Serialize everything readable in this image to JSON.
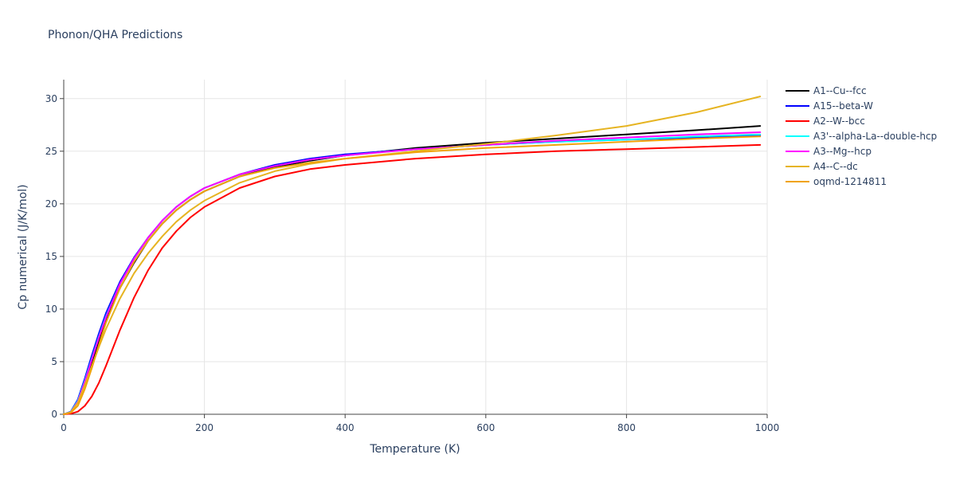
{
  "chart_data": {
    "type": "line",
    "title": "Phonon/QHA Predictions",
    "xlabel": "Temperature (K)",
    "ylabel": "Cp numerical (J/K/mol)",
    "xlim": [
      0,
      1000
    ],
    "ylim": [
      0,
      31.8
    ],
    "xticks": [
      0,
      200,
      400,
      600,
      800,
      1000
    ],
    "yticks": [
      0,
      5,
      10,
      15,
      20,
      25,
      30
    ],
    "grid": true,
    "legend_position": "right",
    "series": [
      {
        "name": "A1--Cu--fcc",
        "color": "#000000",
        "x": [
          0,
          10,
          20,
          30,
          40,
          50,
          60,
          80,
          100,
          120,
          140,
          160,
          180,
          200,
          250,
          300,
          350,
          400,
          500,
          600,
          700,
          800,
          900,
          990
        ],
        "y": [
          0,
          0.2,
          1.2,
          3.0,
          5.0,
          7.0,
          8.9,
          12.0,
          14.4,
          16.5,
          18.1,
          19.4,
          20.4,
          21.2,
          22.6,
          23.5,
          24.1,
          24.6,
          25.3,
          25.8,
          26.2,
          26.6,
          27.0,
          27.4
        ]
      },
      {
        "name": "A15--beta-W",
        "color": "#0000ff",
        "x": [
          0,
          10,
          20,
          30,
          40,
          50,
          60,
          80,
          100,
          120,
          140,
          160,
          180,
          200,
          250,
          300,
          350,
          400,
          500,
          600,
          700,
          800,
          900,
          990
        ],
        "y": [
          0,
          0.25,
          1.4,
          3.4,
          5.6,
          7.7,
          9.6,
          12.6,
          14.9,
          16.8,
          18.4,
          19.7,
          20.7,
          21.5,
          22.8,
          23.7,
          24.3,
          24.7,
          25.2,
          25.6,
          25.9,
          26.1,
          26.3,
          26.5
        ]
      },
      {
        "name": "A2--W--bcc",
        "color": "#ff0000",
        "x": [
          0,
          10,
          20,
          30,
          40,
          50,
          60,
          80,
          100,
          120,
          140,
          160,
          180,
          200,
          250,
          300,
          350,
          400,
          500,
          600,
          700,
          800,
          900,
          990
        ],
        "y": [
          0,
          0.05,
          0.25,
          0.8,
          1.7,
          3.0,
          4.6,
          8.0,
          11.1,
          13.7,
          15.8,
          17.4,
          18.7,
          19.7,
          21.5,
          22.6,
          23.3,
          23.7,
          24.3,
          24.7,
          25.0,
          25.2,
          25.4,
          25.6
        ]
      },
      {
        "name": "A3'--alpha-La--double-hcp",
        "color": "#00ffff",
        "x": [
          0,
          10,
          20,
          30,
          40,
          50,
          60,
          80,
          100,
          120,
          140,
          160,
          180,
          200,
          250,
          300,
          350,
          400,
          500,
          600,
          700,
          800,
          900,
          990
        ],
        "y": [
          0,
          0.22,
          1.3,
          3.2,
          5.3,
          7.4,
          9.3,
          12.4,
          14.8,
          16.8,
          18.4,
          19.7,
          20.7,
          21.5,
          22.8,
          23.6,
          24.2,
          24.6,
          25.2,
          25.6,
          25.9,
          26.1,
          26.4,
          26.6
        ]
      },
      {
        "name": "A3--Mg--hcp",
        "color": "#ff00ff",
        "x": [
          0,
          10,
          20,
          30,
          40,
          50,
          60,
          80,
          100,
          120,
          140,
          160,
          180,
          200,
          250,
          300,
          350,
          400,
          500,
          600,
          700,
          800,
          900,
          990
        ],
        "y": [
          0,
          0.2,
          1.2,
          3.1,
          5.2,
          7.3,
          9.2,
          12.4,
          14.8,
          16.8,
          18.4,
          19.7,
          20.7,
          21.5,
          22.8,
          23.6,
          24.2,
          24.6,
          25.2,
          25.6,
          26.0,
          26.3,
          26.6,
          26.8
        ]
      },
      {
        "name": "A4--C--dc",
        "color": "#e6b422",
        "x": [
          0,
          10,
          20,
          30,
          40,
          50,
          60,
          80,
          100,
          120,
          140,
          160,
          180,
          200,
          250,
          300,
          350,
          400,
          500,
          600,
          700,
          800,
          900,
          990
        ],
        "y": [
          0,
          0.2,
          1.1,
          2.8,
          4.6,
          6.4,
          8.1,
          11.0,
          13.4,
          15.3,
          16.9,
          18.3,
          19.4,
          20.3,
          22.0,
          23.1,
          23.8,
          24.3,
          25.0,
          25.7,
          26.5,
          27.4,
          28.7,
          30.2
        ]
      },
      {
        "name": "oqmd-1214811",
        "color": "#f0a30a",
        "x": [
          0,
          10,
          20,
          30,
          40,
          50,
          60,
          80,
          100,
          120,
          140,
          160,
          180,
          200,
          250,
          300,
          350,
          400,
          500,
          600,
          700,
          800,
          900,
          990
        ],
        "y": [
          0,
          0.15,
          0.8,
          2.4,
          4.4,
          6.6,
          8.7,
          12.0,
          14.5,
          16.5,
          18.1,
          19.4,
          20.4,
          21.2,
          22.6,
          23.4,
          23.9,
          24.3,
          24.9,
          25.3,
          25.6,
          25.9,
          26.2,
          26.4
        ]
      }
    ]
  }
}
